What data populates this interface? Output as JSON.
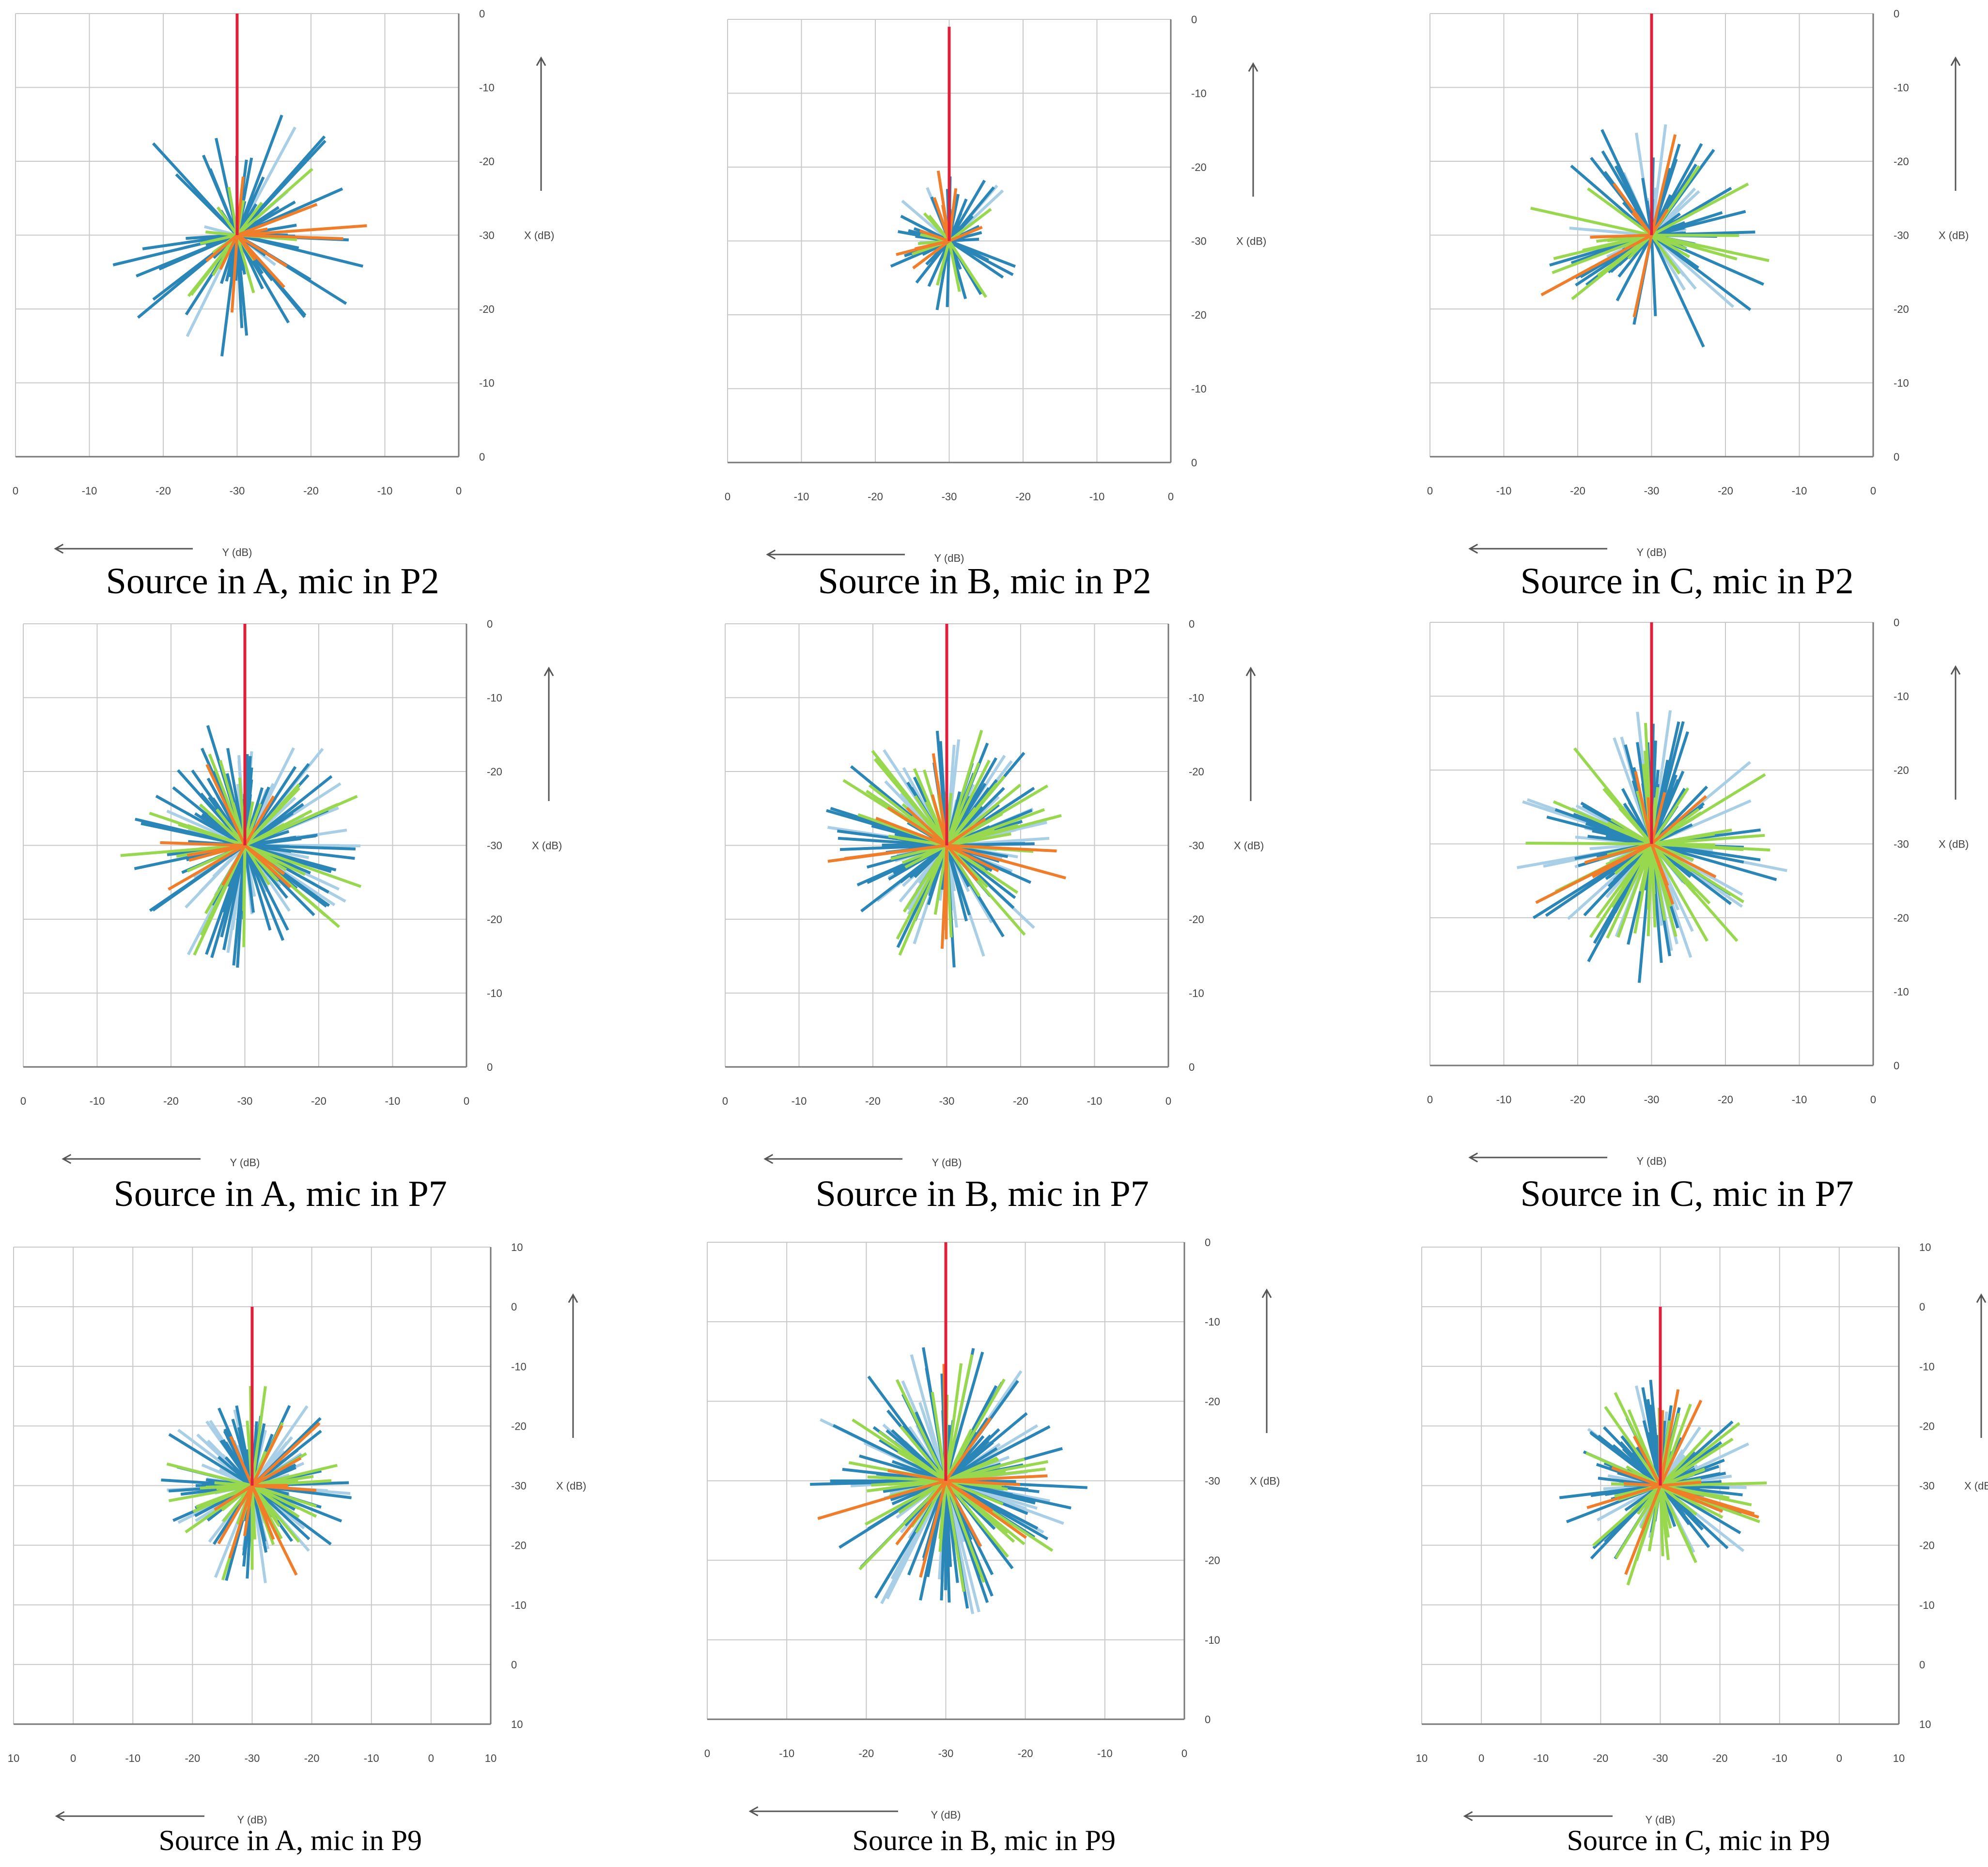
{
  "figure": {
    "description_x_axis": "X (dB)",
    "description_y_axis": "Y (dB)"
  },
  "palette": {
    "direct": "#e0203a",
    "first_order": "#f07d2a",
    "second_order": "#97d84e",
    "third_order": "#2b86b8",
    "higher_order": "#a9cfe6",
    "grid": "#c8c8c8"
  },
  "chart_data": [
    {
      "type": "radial-line-plot",
      "caption": "Source in A, mic in P2",
      "xlabel": "Y (dB)",
      "ylabel": "X (dB)",
      "x_ticks": [
        "0",
        "-10",
        "-20",
        "-30",
        "-20",
        "-10",
        "0"
      ],
      "y_ticks": [
        "0",
        "-10",
        "-20",
        "-30",
        "-20",
        "-10",
        "0"
      ],
      "ylim": [
        -30,
        0
      ],
      "grid": true,
      "direct_sound": {
        "angle_deg": 90,
        "level_db": 0
      },
      "reflections": {
        "count": 90,
        "max_level_db": -12,
        "min_level_db": -26,
        "series_weights": [
          2,
          6,
          10,
          72,
          10
        ]
      }
    },
    {
      "type": "radial-line-plot",
      "caption": "Source in B, mic in P2",
      "xlabel": "Y (dB)",
      "ylabel": "X (dB)",
      "x_ticks": [
        "0",
        "-10",
        "-20",
        "-30",
        "-20",
        "-10",
        "0"
      ],
      "y_ticks": [
        "0",
        "-10",
        "-20",
        "-30",
        "-20",
        "-10",
        "0"
      ],
      "ylim": [
        -30,
        0
      ],
      "grid": true,
      "direct_sound": {
        "angle_deg": 90,
        "level_db": -1
      },
      "reflections": {
        "count": 60,
        "max_level_db": -20,
        "min_level_db": -26,
        "series_weights": [
          3,
          12,
          22,
          55,
          8
        ]
      }
    },
    {
      "type": "radial-line-plot",
      "caption": "Source in C, mic in P2",
      "xlabel": "Y (dB)",
      "ylabel": "X (dB)",
      "x_ticks": [
        "0",
        "-10",
        "-20",
        "-30",
        "-20",
        "-10",
        "0"
      ],
      "y_ticks": [
        "0",
        "-10",
        "-20",
        "-30",
        "-20",
        "-10",
        "0"
      ],
      "ylim": [
        -30,
        0
      ],
      "grid": true,
      "direct_sound": {
        "angle_deg": 90,
        "level_db": 0
      },
      "reflections": {
        "count": 100,
        "max_level_db": -13,
        "min_level_db": -26,
        "series_weights": [
          3,
          10,
          22,
          45,
          20
        ]
      }
    },
    {
      "type": "radial-line-plot",
      "caption": "Source in A, mic in P7",
      "xlabel": "Y (dB)",
      "ylabel": "X (dB)",
      "x_ticks": [
        "0",
        "-10",
        "-20",
        "-30",
        "-20",
        "-10",
        "0"
      ],
      "y_ticks": [
        "0",
        "-10",
        "-20",
        "-30",
        "-20",
        "-10",
        "0"
      ],
      "ylim": [
        -30,
        0
      ],
      "grid": true,
      "direct_sound": {
        "angle_deg": 90,
        "level_db": 0
      },
      "reflections": {
        "count": 190,
        "max_level_db": -13,
        "min_level_db": -24,
        "series_weights": [
          2,
          4,
          22,
          44,
          28
        ]
      }
    },
    {
      "type": "radial-line-plot",
      "caption": "Source in B, mic in P7",
      "xlabel": "Y (dB)",
      "ylabel": "X (dB)",
      "x_ticks": [
        "0",
        "-10",
        "-20",
        "-30",
        "-20",
        "-10",
        "0"
      ],
      "y_ticks": [
        "0",
        "-10",
        "-20",
        "-30",
        "-20",
        "-10",
        "0"
      ],
      "ylim": [
        -30,
        0
      ],
      "grid": true,
      "direct_sound": {
        "angle_deg": 90,
        "level_db": 0
      },
      "reflections": {
        "count": 200,
        "max_level_db": -13,
        "min_level_db": -24,
        "series_weights": [
          2,
          6,
          22,
          42,
          28
        ]
      }
    },
    {
      "type": "radial-line-plot",
      "caption": "Source in C, mic in P7",
      "xlabel": "Y (dB)",
      "ylabel": "X (dB)",
      "x_ticks": [
        "0",
        "-10",
        "-20",
        "-30",
        "-20",
        "-10",
        "0"
      ],
      "y_ticks": [
        "0",
        "-10",
        "-20",
        "-30",
        "-20",
        "-10",
        "0"
      ],
      "ylim": [
        -30,
        0
      ],
      "grid": true,
      "direct_sound": {
        "angle_deg": 90,
        "level_db": 0
      },
      "reflections": {
        "count": 190,
        "max_level_db": -11,
        "min_level_db": -24,
        "series_weights": [
          2,
          6,
          26,
          42,
          24
        ]
      }
    },
    {
      "type": "radial-line-plot",
      "caption": "Source in A, mic in P9",
      "xlabel": "Y (dB)",
      "ylabel": "X (dB)",
      "x_ticks": [
        "10",
        "0",
        "-10",
        "-20",
        "-30",
        "-20",
        "-10",
        "0",
        "10"
      ],
      "y_ticks": [
        "10",
        "0",
        "-10",
        "-20",
        "-30",
        "-20",
        "-10",
        "0",
        "10"
      ],
      "ylim": [
        -30,
        10
      ],
      "grid": true,
      "direct_sound": {
        "angle_deg": 90,
        "level_db": 0
      },
      "reflections": {
        "count": 170,
        "max_level_db": -13,
        "min_level_db": -24,
        "series_weights": [
          2,
          6,
          22,
          42,
          28
        ]
      }
    },
    {
      "type": "radial-line-plot",
      "caption": "Source in B, mic in P9",
      "xlabel": "Y (dB)",
      "ylabel": "X (dB)",
      "x_ticks": [
        "0",
        "-10",
        "-20",
        "-30",
        "-20",
        "-10",
        "0"
      ],
      "y_ticks": [
        "0",
        "-10",
        "-20",
        "-30",
        "-20",
        "-10",
        "0"
      ],
      "ylim": [
        -30,
        0
      ],
      "grid": true,
      "direct_sound": {
        "angle_deg": 90,
        "level_db": 0
      },
      "reflections": {
        "count": 190,
        "max_level_db": -12,
        "min_level_db": -23,
        "series_weights": [
          2,
          6,
          28,
          40,
          24
        ]
      }
    },
    {
      "type": "radial-line-plot",
      "caption": "Source in C, mic in P9",
      "xlabel": "Y (dB)",
      "ylabel": "X (dB)",
      "x_ticks": [
        "10",
        "0",
        "-10",
        "-20",
        "-30",
        "-20",
        "-10",
        "0",
        "10"
      ],
      "y_ticks": [
        "10",
        "0",
        "-10",
        "-20",
        "-30",
        "-20",
        "-10",
        "0",
        "10"
      ],
      "ylim": [
        -30,
        10
      ],
      "grid": true,
      "direct_sound": {
        "angle_deg": 90,
        "level_db": 0
      },
      "reflections": {
        "count": 170,
        "max_level_db": -12,
        "min_level_db": -24,
        "series_weights": [
          2,
          6,
          30,
          40,
          22
        ]
      }
    }
  ]
}
